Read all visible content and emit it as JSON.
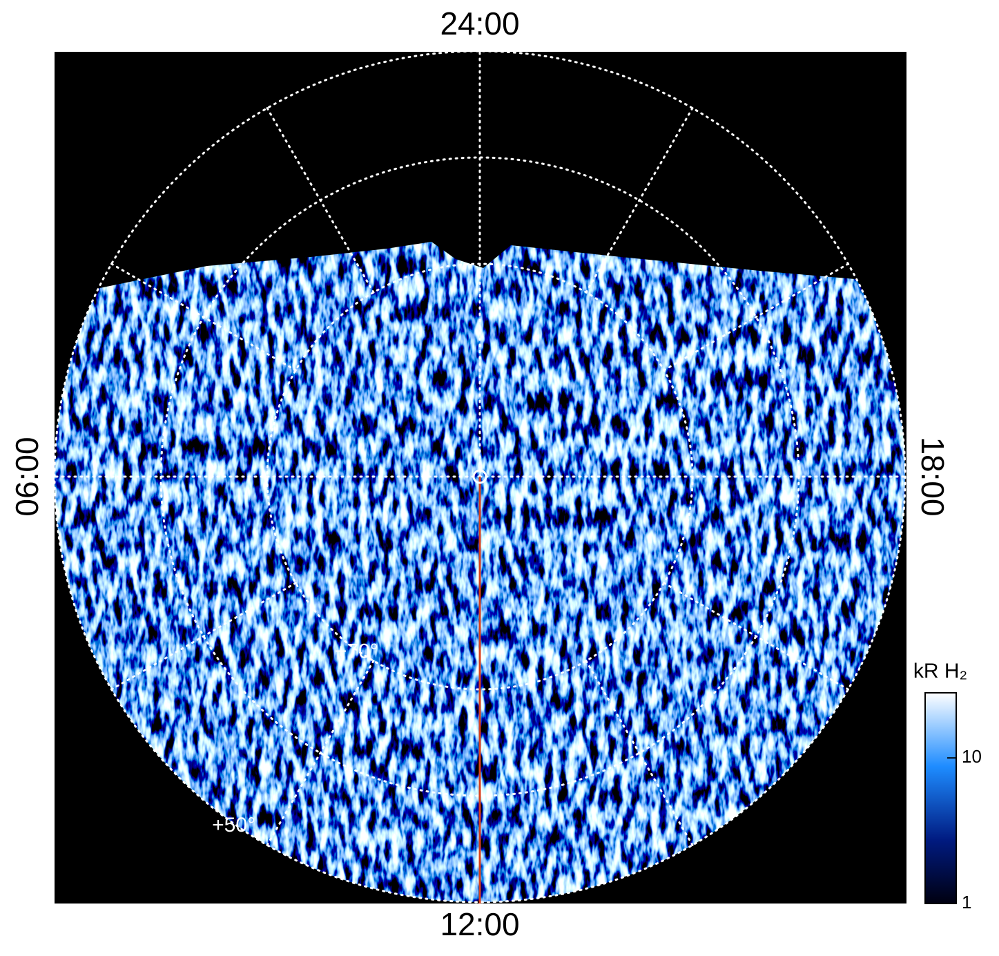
{
  "chart_data": {
    "type": "polar-image",
    "rlim": [
      90,
      50
    ],
    "lat_grid": [
      50,
      60,
      70
    ],
    "hour_grid": [
      0,
      2,
      4,
      6,
      8,
      10,
      12,
      14,
      16,
      18,
      20,
      22
    ],
    "lt_labels": [
      {
        "value": 0,
        "label": "24:00"
      },
      {
        "value": 6,
        "label": "06:00"
      },
      {
        "value": 12,
        "label": "12:00"
      },
      {
        "value": 18,
        "label": "18:00"
      }
    ],
    "lat_labels": [
      {
        "value": 70,
        "label": "+70°"
      },
      {
        "value": 50,
        "label": "+50°"
      }
    ],
    "colorbar": {
      "label": "kR H₂",
      "clim": [
        1,
        28
      ],
      "cticks": [
        1,
        10
      ],
      "log": true
    }
  }
}
